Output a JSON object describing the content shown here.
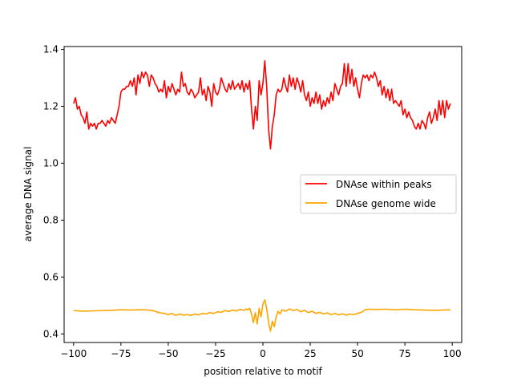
{
  "chart_data": {
    "type": "line",
    "title": "",
    "xlabel": "position relative to motif",
    "ylabel": "average DNA signal",
    "xlim": [
      -105,
      105
    ],
    "ylim": [
      0.37,
      1.41
    ],
    "xticks": [
      -100,
      -75,
      -50,
      -25,
      0,
      25,
      50,
      75,
      100
    ],
    "xtick_labels": [
      "−100",
      "−75",
      "−50",
      "−25",
      "0",
      "25",
      "50",
      "75",
      "100"
    ],
    "yticks": [
      0.4,
      0.6,
      0.8,
      1.0,
      1.2,
      1.4
    ],
    "ytick_labels": [
      "0.4",
      "0.6",
      "0.8",
      "1.0",
      "1.2",
      "1.4"
    ],
    "grid": false,
    "legend": {
      "placement": "center-right"
    },
    "series": [
      {
        "name": "DNAse within peaks",
        "color": "#ff0000",
        "points": [
          [
            -100,
            1.21
          ],
          [
            -99,
            1.23
          ],
          [
            -98,
            1.19
          ],
          [
            -97,
            1.2
          ],
          [
            -96,
            1.17
          ],
          [
            -95,
            1.16
          ],
          [
            -94,
            1.14
          ],
          [
            -93,
            1.18
          ],
          [
            -92,
            1.12
          ],
          [
            -91,
            1.14
          ],
          [
            -90,
            1.13
          ],
          [
            -89,
            1.14
          ],
          [
            -88,
            1.12
          ],
          [
            -87,
            1.14
          ],
          [
            -86,
            1.14
          ],
          [
            -85,
            1.15
          ],
          [
            -84,
            1.14
          ],
          [
            -83,
            1.13
          ],
          [
            -82,
            1.15
          ],
          [
            -81,
            1.14
          ],
          [
            -80,
            1.16
          ],
          [
            -79,
            1.15
          ],
          [
            -78,
            1.14
          ],
          [
            -77,
            1.17
          ],
          [
            -76,
            1.2
          ],
          [
            -75,
            1.25
          ],
          [
            -74,
            1.26
          ],
          [
            -73,
            1.26
          ],
          [
            -72,
            1.27
          ],
          [
            -71,
            1.27
          ],
          [
            -70,
            1.29
          ],
          [
            -69,
            1.27
          ],
          [
            -68,
            1.3
          ],
          [
            -67,
            1.24
          ],
          [
            -66,
            1.31
          ],
          [
            -65,
            1.28
          ],
          [
            -64,
            1.32
          ],
          [
            -63,
            1.3
          ],
          [
            -62,
            1.32
          ],
          [
            -61,
            1.31
          ],
          [
            -60,
            1.27
          ],
          [
            -59,
            1.31
          ],
          [
            -58,
            1.3
          ],
          [
            -57,
            1.28
          ],
          [
            -56,
            1.27
          ],
          [
            -55,
            1.25
          ],
          [
            -54,
            1.26
          ],
          [
            -53,
            1.25
          ],
          [
            -52,
            1.29
          ],
          [
            -51,
            1.23
          ],
          [
            -50,
            1.27
          ],
          [
            -49,
            1.25
          ],
          [
            -48,
            1.28
          ],
          [
            -47,
            1.26
          ],
          [
            -46,
            1.24
          ],
          [
            -45,
            1.26
          ],
          [
            -44,
            1.25
          ],
          [
            -43,
            1.32
          ],
          [
            -42,
            1.27
          ],
          [
            -41,
            1.28
          ],
          [
            -40,
            1.25
          ],
          [
            -39,
            1.24
          ],
          [
            -38,
            1.26
          ],
          [
            -37,
            1.25
          ],
          [
            -36,
            1.23
          ],
          [
            -35,
            1.24
          ],
          [
            -34,
            1.25
          ],
          [
            -33,
            1.3
          ],
          [
            -32,
            1.24
          ],
          [
            -31,
            1.26
          ],
          [
            -30,
            1.22
          ],
          [
            -29,
            1.27
          ],
          [
            -28,
            1.25
          ],
          [
            -27,
            1.2
          ],
          [
            -26,
            1.28
          ],
          [
            -25,
            1.25
          ],
          [
            -24,
            1.24
          ],
          [
            -23,
            1.26
          ],
          [
            -22,
            1.3
          ],
          [
            -21,
            1.28
          ],
          [
            -20,
            1.26
          ],
          [
            -19,
            1.25
          ],
          [
            -18,
            1.28
          ],
          [
            -17,
            1.26
          ],
          [
            -16,
            1.29
          ],
          [
            -15,
            1.26
          ],
          [
            -14,
            1.27
          ],
          [
            -13,
            1.28
          ],
          [
            -12,
            1.26
          ],
          [
            -11,
            1.29
          ],
          [
            -10,
            1.25
          ],
          [
            -9,
            1.28
          ],
          [
            -8,
            1.26
          ],
          [
            -7,
            1.29
          ],
          [
            -6,
            1.19
          ],
          [
            -5,
            1.12
          ],
          [
            -4,
            1.2
          ],
          [
            -3,
            1.15
          ],
          [
            -2,
            1.29
          ],
          [
            -1,
            1.24
          ],
          [
            0,
            1.28
          ],
          [
            1,
            1.36
          ],
          [
            2,
            1.27
          ],
          [
            3,
            1.12
          ],
          [
            4,
            1.05
          ],
          [
            5,
            1.13
          ],
          [
            6,
            1.17
          ],
          [
            7,
            1.24
          ],
          [
            8,
            1.26
          ],
          [
            9,
            1.25
          ],
          [
            10,
            1.26
          ],
          [
            11,
            1.3
          ],
          [
            12,
            1.27
          ],
          [
            13,
            1.25
          ],
          [
            14,
            1.31
          ],
          [
            15,
            1.27
          ],
          [
            16,
            1.3
          ],
          [
            17,
            1.26
          ],
          [
            18,
            1.3
          ],
          [
            19,
            1.28
          ],
          [
            20,
            1.25
          ],
          [
            21,
            1.29
          ],
          [
            22,
            1.24
          ],
          [
            23,
            1.22
          ],
          [
            24,
            1.25
          ],
          [
            25,
            1.2
          ],
          [
            26,
            1.23
          ],
          [
            27,
            1.21
          ],
          [
            28,
            1.25
          ],
          [
            29,
            1.21
          ],
          [
            30,
            1.24
          ],
          [
            31,
            1.19
          ],
          [
            32,
            1.22
          ],
          [
            33,
            1.2
          ],
          [
            34,
            1.23
          ],
          [
            35,
            1.21
          ],
          [
            36,
            1.25
          ],
          [
            37,
            1.22
          ],
          [
            38,
            1.28
          ],
          [
            39,
            1.26
          ],
          [
            40,
            1.24
          ],
          [
            41,
            1.27
          ],
          [
            42,
            1.28
          ],
          [
            43,
            1.35
          ],
          [
            44,
            1.27
          ],
          [
            45,
            1.35
          ],
          [
            46,
            1.28
          ],
          [
            47,
            1.33
          ],
          [
            48,
            1.27
          ],
          [
            49,
            1.3
          ],
          [
            50,
            1.26
          ],
          [
            51,
            1.23
          ],
          [
            52,
            1.28
          ],
          [
            53,
            1.31
          ],
          [
            54,
            1.3
          ],
          [
            55,
            1.31
          ],
          [
            56,
            1.29
          ],
          [
            57,
            1.31
          ],
          [
            58,
            1.3
          ],
          [
            59,
            1.32
          ],
          [
            60,
            1.3
          ],
          [
            61,
            1.27
          ],
          [
            62,
            1.29
          ],
          [
            63,
            1.24
          ],
          [
            64,
            1.27
          ],
          [
            65,
            1.23
          ],
          [
            66,
            1.26
          ],
          [
            67,
            1.22
          ],
          [
            68,
            1.26
          ],
          [
            69,
            1.21
          ],
          [
            70,
            1.22
          ],
          [
            71,
            1.21
          ],
          [
            72,
            1.2
          ],
          [
            73,
            1.22
          ],
          [
            74,
            1.17
          ],
          [
            75,
            1.19
          ],
          [
            76,
            1.16
          ],
          [
            77,
            1.18
          ],
          [
            78,
            1.16
          ],
          [
            79,
            1.15
          ],
          [
            80,
            1.13
          ],
          [
            81,
            1.12
          ],
          [
            82,
            1.14
          ],
          [
            83,
            1.12
          ],
          [
            84,
            1.15
          ],
          [
            85,
            1.14
          ],
          [
            86,
            1.12
          ],
          [
            87,
            1.16
          ],
          [
            88,
            1.18
          ],
          [
            89,
            1.14
          ],
          [
            90,
            1.16
          ],
          [
            91,
            1.19
          ],
          [
            92,
            1.15
          ],
          [
            93,
            1.22
          ],
          [
            94,
            1.17
          ],
          [
            95,
            1.22
          ],
          [
            96,
            1.16
          ],
          [
            97,
            1.22
          ],
          [
            98,
            1.19
          ],
          [
            99,
            1.21
          ]
        ]
      },
      {
        "name": "DNAse genome wide",
        "color": "#ffa500",
        "points": [
          [
            -100,
            0.482
          ],
          [
            -95,
            0.48
          ],
          [
            -90,
            0.481
          ],
          [
            -85,
            0.482
          ],
          [
            -80,
            0.483
          ],
          [
            -75,
            0.485
          ],
          [
            -70,
            0.484
          ],
          [
            -65,
            0.485
          ],
          [
            -60,
            0.484
          ],
          [
            -57,
            0.48
          ],
          [
            -55,
            0.475
          ],
          [
            -52,
            0.472
          ],
          [
            -50,
            0.468
          ],
          [
            -48,
            0.472
          ],
          [
            -46,
            0.465
          ],
          [
            -44,
            0.47
          ],
          [
            -42,
            0.466
          ],
          [
            -40,
            0.468
          ],
          [
            -38,
            0.465
          ],
          [
            -36,
            0.47
          ],
          [
            -34,
            0.467
          ],
          [
            -32,
            0.472
          ],
          [
            -30,
            0.47
          ],
          [
            -28,
            0.475
          ],
          [
            -26,
            0.472
          ],
          [
            -24,
            0.478
          ],
          [
            -22,
            0.476
          ],
          [
            -20,
            0.482
          ],
          [
            -18,
            0.479
          ],
          [
            -16,
            0.484
          ],
          [
            -14,
            0.481
          ],
          [
            -12,
            0.486
          ],
          [
            -10,
            0.483
          ],
          [
            -9,
            0.488
          ],
          [
            -8,
            0.485
          ],
          [
            -7,
            0.49
          ],
          [
            -6,
            0.47
          ],
          [
            -5,
            0.44
          ],
          [
            -4,
            0.475
          ],
          [
            -3,
            0.435
          ],
          [
            -2,
            0.49
          ],
          [
            -1,
            0.46
          ],
          [
            0,
            0.505
          ],
          [
            1,
            0.52
          ],
          [
            2,
            0.49
          ],
          [
            3,
            0.44
          ],
          [
            4,
            0.41
          ],
          [
            5,
            0.445
          ],
          [
            6,
            0.425
          ],
          [
            7,
            0.46
          ],
          [
            8,
            0.48
          ],
          [
            9,
            0.47
          ],
          [
            10,
            0.485
          ],
          [
            12,
            0.48
          ],
          [
            14,
            0.488
          ],
          [
            16,
            0.482
          ],
          [
            18,
            0.486
          ],
          [
            20,
            0.478
          ],
          [
            22,
            0.483
          ],
          [
            24,
            0.475
          ],
          [
            26,
            0.48
          ],
          [
            28,
            0.472
          ],
          [
            30,
            0.476
          ],
          [
            32,
            0.47
          ],
          [
            34,
            0.474
          ],
          [
            36,
            0.468
          ],
          [
            38,
            0.472
          ],
          [
            40,
            0.467
          ],
          [
            42,
            0.471
          ],
          [
            44,
            0.466
          ],
          [
            46,
            0.47
          ],
          [
            48,
            0.468
          ],
          [
            50,
            0.472
          ],
          [
            52,
            0.476
          ],
          [
            54,
            0.485
          ],
          [
            56,
            0.487
          ],
          [
            60,
            0.486
          ],
          [
            65,
            0.487
          ],
          [
            70,
            0.485
          ],
          [
            75,
            0.487
          ],
          [
            80,
            0.485
          ],
          [
            85,
            0.484
          ],
          [
            90,
            0.483
          ],
          [
            95,
            0.484
          ],
          [
            99,
            0.485
          ]
        ]
      }
    ]
  }
}
